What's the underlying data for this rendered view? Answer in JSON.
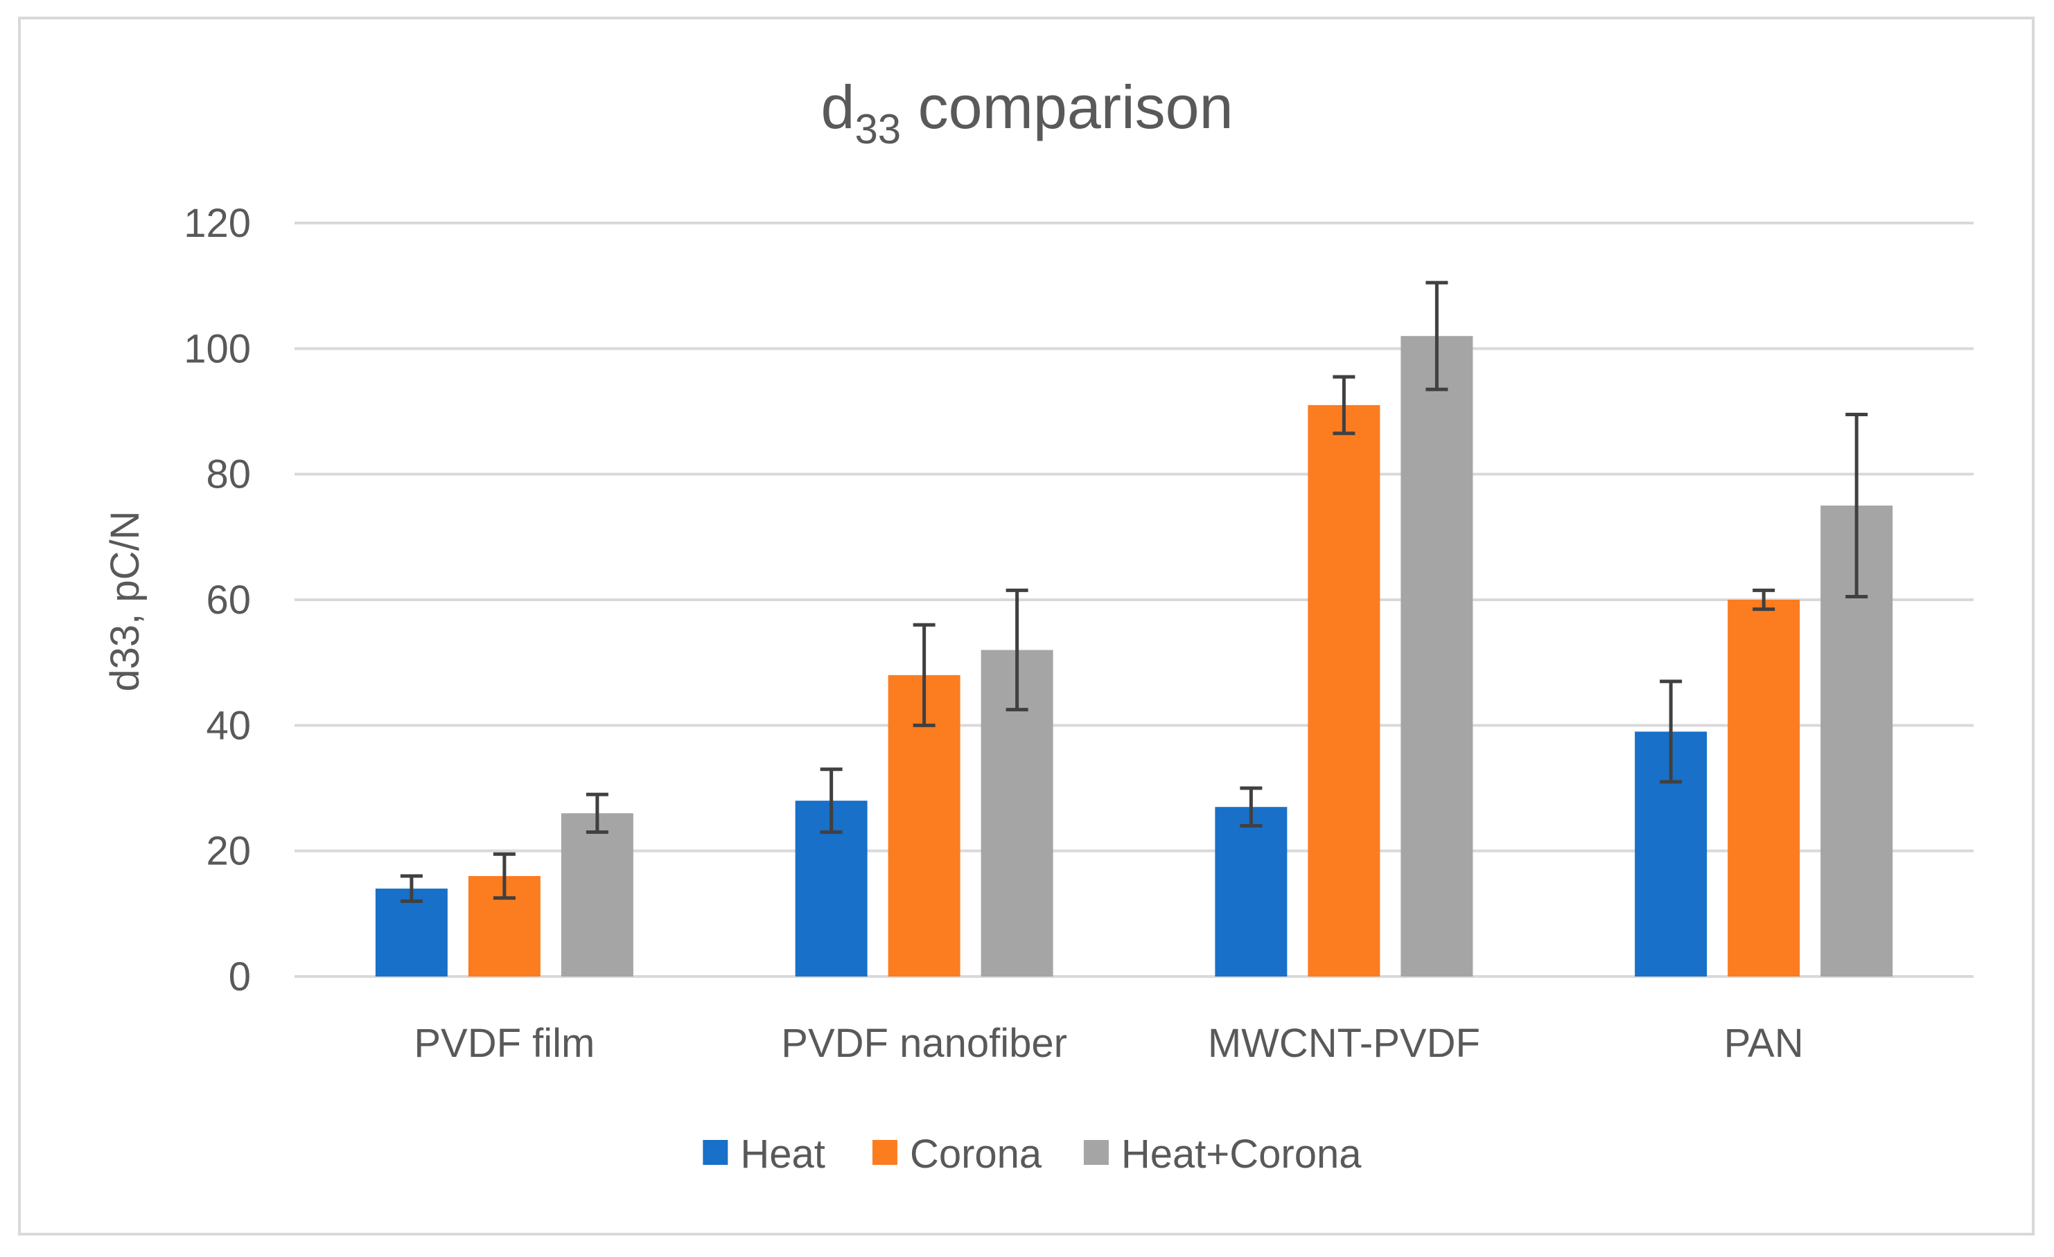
{
  "chart_data": {
    "type": "bar",
    "title_main": "d",
    "title_sub": "33",
    "title_rest": " comparison",
    "ylabel": "d33, pC/N",
    "xlabel": "",
    "ylim": [
      0,
      120
    ],
    "yticks": [
      0,
      20,
      40,
      60,
      80,
      100,
      120
    ],
    "categories": [
      "PVDF film",
      "PVDF nanofiber",
      "MWCNT-PVDF",
      "PAN"
    ],
    "series": [
      {
        "name": "Heat",
        "color": "#1870c8",
        "values": [
          14,
          28,
          27,
          39
        ],
        "errors": [
          2,
          5,
          3,
          8
        ]
      },
      {
        "name": "Corona",
        "color": "#fc7c20",
        "values": [
          16,
          48,
          91,
          60
        ],
        "errors": [
          3.5,
          8,
          4.5,
          1.5
        ]
      },
      {
        "name": "Heat+Corona",
        "color": "#a5a5a5",
        "values": [
          26,
          52,
          102,
          75
        ],
        "errors": [
          3,
          9.5,
          8.5,
          14.5
        ]
      }
    ],
    "grid": true,
    "legend_position": "bottom"
  }
}
